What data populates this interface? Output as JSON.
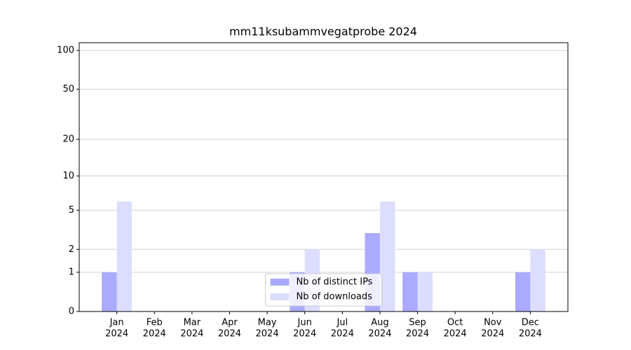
{
  "chart_data": {
    "type": "bar",
    "title": "mm11ksubammvegatprobe 2024",
    "categories": [
      [
        "Jan",
        "2024"
      ],
      [
        "Feb",
        "2024"
      ],
      [
        "Mar",
        "2024"
      ],
      [
        "Apr",
        "2024"
      ],
      [
        "May",
        "2024"
      ],
      [
        "Jun",
        "2024"
      ],
      [
        "Jul",
        "2024"
      ],
      [
        "Aug",
        "2024"
      ],
      [
        "Sep",
        "2024"
      ],
      [
        "Oct",
        "2024"
      ],
      [
        "Nov",
        "2024"
      ],
      [
        "Dec",
        "2024"
      ]
    ],
    "series": [
      {
        "name": "Nb of distinct IPs",
        "color": "#aaaaff",
        "values": [
          1,
          0,
          0,
          0,
          0,
          1,
          0,
          3,
          1,
          0,
          0,
          1
        ]
      },
      {
        "name": "Nb of downloads",
        "color": "#ddddff",
        "values": [
          6,
          0,
          0,
          0,
          0,
          2,
          0,
          6,
          1,
          0,
          0,
          2
        ]
      }
    ],
    "yscale": "log1p",
    "ylim": [
      0,
      115
    ],
    "yticks": [
      0,
      1,
      2,
      5,
      10,
      20,
      50,
      100
    ],
    "grid": true,
    "legend": "lower center"
  }
}
